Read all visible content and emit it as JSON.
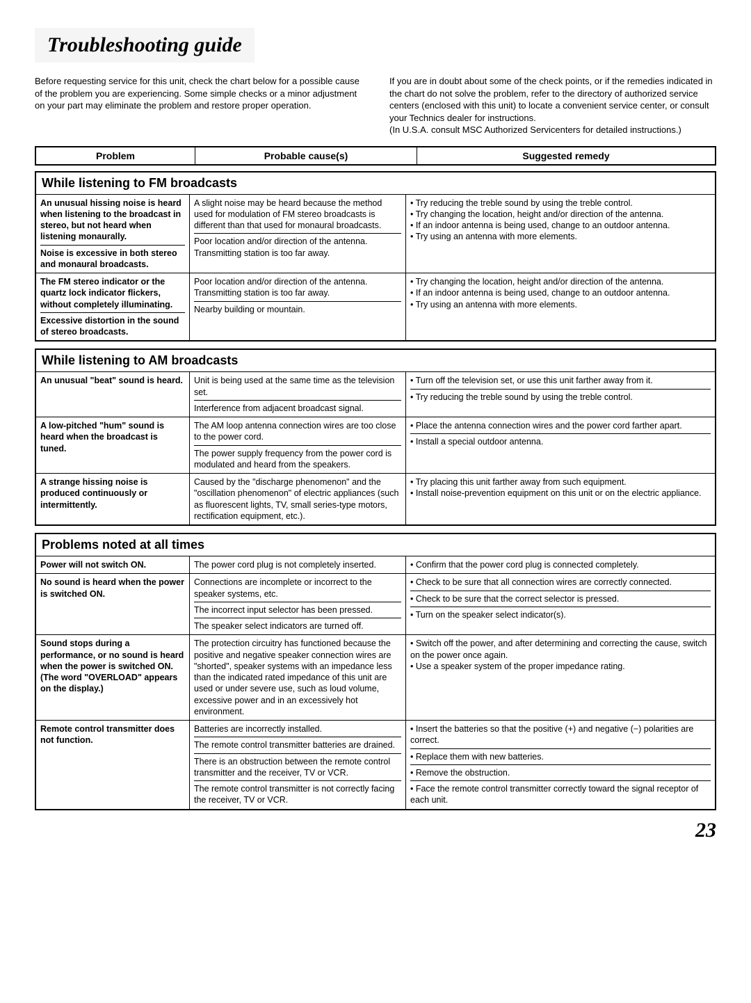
{
  "title": "Troubleshooting guide",
  "introLeft": "Before requesting service for this unit, check the chart below for a possible cause of the problem you are experiencing. Some simple checks or a minor adjustment on your part may eliminate the problem and restore proper operation.",
  "introRight": "If you are in doubt about some of the check points, or if the remedies indicated in the chart do not solve the problem, refer to the directory of authorized service centers (enclosed with this unit) to locate a convenient service center, or consult your Technics dealer for instructions.\n(In U.S.A. consult MSC Authorized Servicenters for detailed instructions.)",
  "headers": {
    "c1": "Problem",
    "c2": "Probable cause(s)",
    "c3": "Suggested remedy"
  },
  "sections": [
    {
      "title": "While listening to FM broadcasts",
      "rows": [
        {
          "problem": "An unusual hissing noise is heard when listening to the broadcast in stereo, but not heard when listening monaurally.",
          "cause": "A slight noise may be heard because the method used for modulation of FM stereo broadcasts is different than that used for monaural broadcasts.",
          "remedy": "• Try reducing the treble sound by using the treble control.\n• Try changing the location, height and/or direction of the antenna.\n• If an indoor antenna is being used, change to an outdoor antenna.\n• Try using an antenna with more elements.",
          "remedyRowspan": 2
        },
        {
          "problem": "Noise is excessive in both stereo and monaural broadcasts.",
          "cause": "Poor location and/or direction of the antenna.\nTransmitting station is too far away."
        },
        {
          "problem": "The FM stereo indicator or the quartz lock indicator flickers, without completely illuminating.",
          "cause": "Poor location and/or direction of the antenna.\nTransmitting station is too far away.",
          "remedy": "• Try changing the location, height and/or direction of the antenna.\n• If an indoor antenna is being used, change to an outdoor antenna.\n• Try using an antenna with more elements.",
          "remedyRowspan": 2
        },
        {
          "problem": "Excessive distortion in the sound of stereo broadcasts.",
          "cause": "Nearby building or mountain."
        }
      ]
    },
    {
      "title": "While listening to AM broadcasts",
      "rows": [
        {
          "problem": "An unusual \"beat\" sound is heard.",
          "problemRowspan": 2,
          "cause": "Unit is being used at the same time as the television set.",
          "remedy": "• Turn off the television set, or use this unit farther away from it."
        },
        {
          "cause": "Interference from adjacent broadcast signal.",
          "remedy": "• Try reducing the treble sound by using the treble control."
        },
        {
          "problem": "A low-pitched \"hum\" sound is heard when the broadcast is tuned.",
          "problemRowspan": 2,
          "cause": "The AM loop antenna connection wires are too close to the power cord.",
          "remedy": "• Place the antenna connection wires and the power cord farther apart."
        },
        {
          "cause": "The power supply frequency from the power cord is modulated and heard from the speakers.",
          "remedy": "• Install a special outdoor antenna."
        },
        {
          "problem": "A strange hissing noise is produced continuously or intermittently.",
          "cause": "Caused by the \"discharge phenomenon\" and the \"oscillation phenomenon\" of electric appliances (such as fluorescent lights, TV, small series-type motors, rectification equipment, etc.).",
          "remedy": "• Try placing this unit farther away from such equipment.\n• Install noise-prevention equipment on this unit or on the electric appliance."
        }
      ]
    },
    {
      "title": "Problems noted at all times",
      "rows": [
        {
          "problem": "Power will not switch ON.",
          "cause": "The power cord plug is not completely inserted.",
          "remedy": "• Confirm that the power cord plug is connected completely."
        },
        {
          "problem": "No sound is heard when the power is switched ON.",
          "problemRowspan": 3,
          "cause": "Connections are incomplete or incorrect to the speaker systems, etc.",
          "remedy": "• Check to be sure that all connection wires are correctly connected."
        },
        {
          "cause": "The incorrect input selector has been pressed.",
          "remedy": "• Check to be sure that the correct selector is pressed."
        },
        {
          "cause": "The speaker select indicators are turned off.",
          "remedy": "• Turn on the speaker select indicator(s)."
        },
        {
          "problem": "Sound stops during a performance, or no sound is heard when the power is switched ON.\n(The word \"OVERLOAD\" appears on the display.)",
          "cause": "The protection circuitry has functioned because the positive and negative speaker connection wires are \"shorted\", speaker systems with an impedance less than the indicated rated impedance of this unit are used or under severe use, such as loud volume, excessive power and in an excessively hot environment.",
          "remedy": "• Switch off the power, and after determining and correcting the cause, switch on the power once again.\n• Use a speaker system of the proper impedance rating."
        },
        {
          "problem": "Remote control transmitter does not function.",
          "problemRowspan": 4,
          "cause": "Batteries are incorrectly installed.",
          "remedy": "• Insert the batteries so that the positive (+) and negative (−) polarities are correct."
        },
        {
          "cause": "The remote control transmitter batteries are drained.",
          "remedy": "• Replace them with new batteries."
        },
        {
          "cause": "There is an obstruction between the remote control transmitter and the receiver, TV or VCR.",
          "remedy": "• Remove the obstruction."
        },
        {
          "cause": "The remote control transmitter is not correctly facing the receiver, TV or VCR.",
          "remedy": "• Face the remote control transmitter correctly toward the signal receptor of each unit."
        }
      ]
    }
  ],
  "pageNumber": "23"
}
